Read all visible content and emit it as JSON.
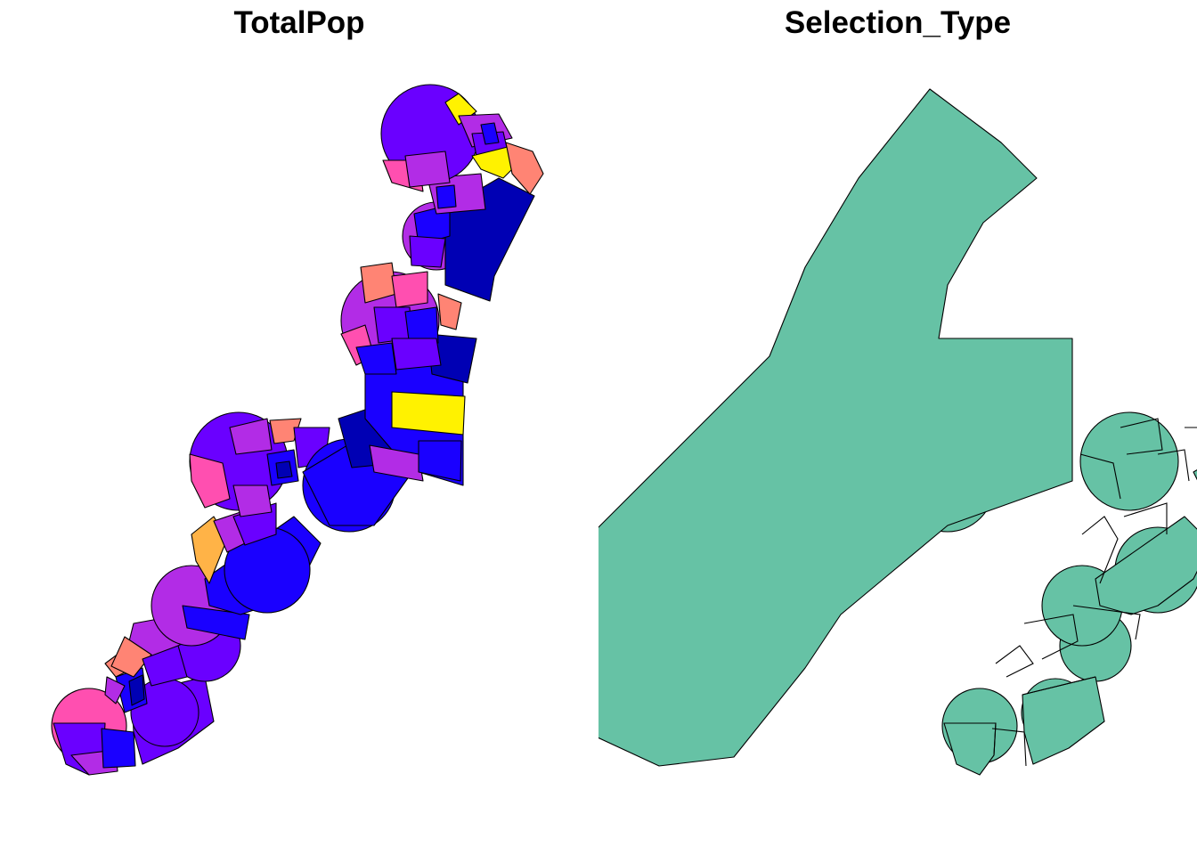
{
  "panels": [
    {
      "title": "TotalPop"
    },
    {
      "title": "Selection_Type"
    }
  ],
  "colors": {
    "violet": "#6a00ff",
    "purple": "#b22ce6",
    "blue": "#1a00ff",
    "navy": "#0000b4",
    "pink": "#ff4fb0",
    "salmon": "#ff8474",
    "orange": "#ffb347",
    "yellow": "#fff200",
    "teal": "#66c2a5",
    "stroke": "#000000"
  }
}
